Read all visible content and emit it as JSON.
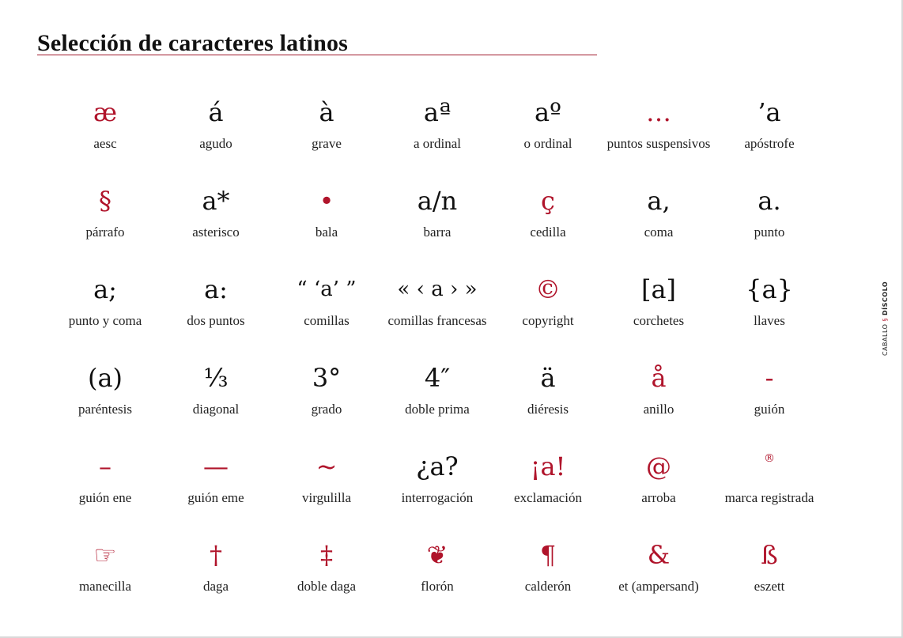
{
  "title": "Selección de caracteres latinos",
  "brand": {
    "left": "CABALLO",
    "mark": "§",
    "right": "DÍSCOLO"
  },
  "colors": {
    "accent": "#b0142b",
    "text": "#111111"
  },
  "items": [
    {
      "glyph": "æ",
      "label": "aesc"
    },
    {
      "glyph": "á",
      "label": "agudo"
    },
    {
      "glyph": "à",
      "label": "grave"
    },
    {
      "glyph": "aª",
      "label": "a ordinal"
    },
    {
      "glyph": "aº",
      "label": "o ordinal"
    },
    {
      "glyph": "…",
      "label": "puntos suspensivos"
    },
    {
      "glyph": "’a",
      "label": "apóstrofe"
    },
    {
      "glyph": "§",
      "label": "párrafo"
    },
    {
      "glyph": "a*",
      "label": "asterisco"
    },
    {
      "glyph": "•",
      "label": "bala"
    },
    {
      "glyph": "a/n",
      "label": "barra"
    },
    {
      "glyph": "ç",
      "label": "cedilla"
    },
    {
      "glyph": "a,",
      "label": "coma"
    },
    {
      "glyph": "a.",
      "label": "punto"
    },
    {
      "glyph": "a;",
      "label": "punto y coma"
    },
    {
      "glyph": "a:",
      "label": "dos puntos"
    },
    {
      "glyph": "“ ‘a’ ”",
      "label": "comillas"
    },
    {
      "glyph": "« ‹ a › »",
      "label": "comillas francesas"
    },
    {
      "glyph": "©",
      "label": "copyright"
    },
    {
      "glyph": "[a]",
      "label": "corchetes"
    },
    {
      "glyph": "{a}",
      "label": "llaves"
    },
    {
      "glyph": "(a)",
      "label": "paréntesis"
    },
    {
      "glyph": "⅓",
      "label": "diagonal"
    },
    {
      "glyph": "3°",
      "label": "grado"
    },
    {
      "glyph": "4″",
      "label": "doble prima"
    },
    {
      "glyph": "ä",
      "label": "diéresis"
    },
    {
      "glyph": "å",
      "label": "anillo"
    },
    {
      "glyph": "-",
      "label": "guión"
    },
    {
      "glyph": "–",
      "label": "guión ene"
    },
    {
      "glyph": "—",
      "label": "guión eme"
    },
    {
      "glyph": "~",
      "label": "virgulilla"
    },
    {
      "glyph": "¿a?",
      "label": "interrogación"
    },
    {
      "glyph": "¡a!",
      "label": "exclamación"
    },
    {
      "glyph": "@",
      "label": "arroba"
    },
    {
      "glyph": "®",
      "label": "marca registrada"
    },
    {
      "glyph": "☞",
      "label": "manecilla"
    },
    {
      "glyph": "†",
      "label": "daga"
    },
    {
      "glyph": "‡",
      "label": "doble daga"
    },
    {
      "glyph": "❦",
      "label": "florón"
    },
    {
      "glyph": "¶",
      "label": "calderón"
    },
    {
      "glyph": "&",
      "label": "et (ampersand)"
    },
    {
      "glyph": "ß",
      "label": "eszett"
    }
  ]
}
